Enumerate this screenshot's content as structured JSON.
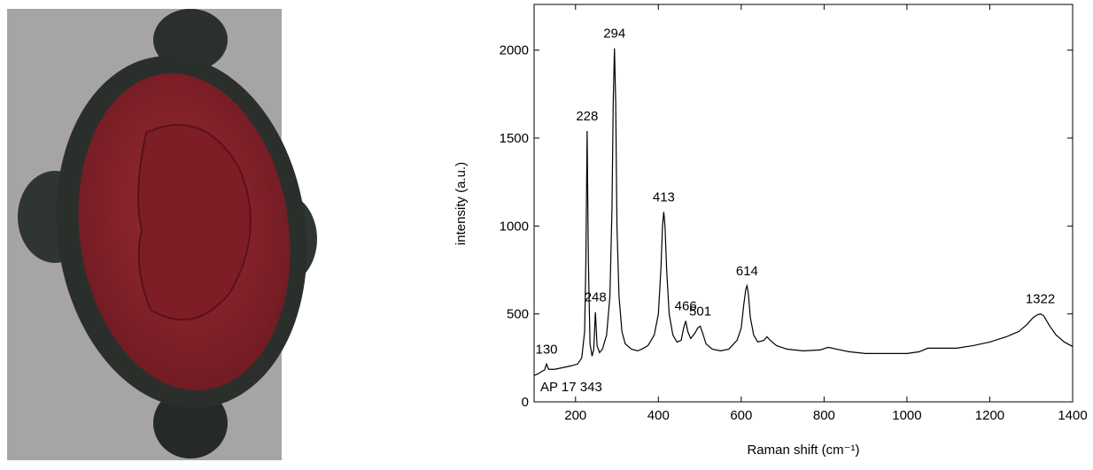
{
  "chart_data": {
    "type": "line",
    "xlabel": "Raman shift (cm⁻¹)",
    "ylabel": "intensity (a.u.)",
    "sample_label": "AP 17 343",
    "xlim": [
      100,
      1400
    ],
    "xticks": [
      200,
      400,
      600,
      800,
      1000,
      1200,
      1400
    ],
    "ylim": [
      0,
      2260
    ],
    "yticks": [
      0,
      500,
      1000,
      1500,
      2000
    ],
    "color": "#000000",
    "x": [
      100,
      110,
      120,
      125,
      130,
      135,
      150,
      170,
      190,
      205,
      215,
      222,
      225,
      228,
      231,
      235,
      240,
      244,
      248,
      252,
      258,
      265,
      275,
      283,
      288,
      291,
      294,
      297,
      300,
      305,
      312,
      320,
      335,
      350,
      360,
      375,
      390,
      400,
      406,
      410,
      413,
      416,
      420,
      426,
      435,
      445,
      455,
      461,
      466,
      471,
      478,
      488,
      495,
      501,
      507,
      515,
      530,
      550,
      570,
      590,
      600,
      606,
      611,
      614,
      617,
      622,
      630,
      640,
      655,
      662,
      670,
      685,
      710,
      750,
      790,
      810,
      830,
      860,
      900,
      950,
      1000,
      1030,
      1050,
      1080,
      1120,
      1160,
      1200,
      1240,
      1270,
      1290,
      1305,
      1315,
      1322,
      1330,
      1345,
      1360,
      1380,
      1400
    ],
    "values": [
      150,
      160,
      175,
      180,
      215,
      185,
      185,
      195,
      205,
      215,
      250,
      400,
      800,
      1540,
      800,
      330,
      260,
      300,
      510,
      320,
      280,
      300,
      380,
      600,
      1100,
      1700,
      2010,
      1700,
      1000,
      600,
      400,
      330,
      300,
      290,
      300,
      320,
      380,
      500,
      750,
      1000,
      1080,
      1000,
      750,
      500,
      380,
      340,
      350,
      420,
      460,
      400,
      360,
      390,
      420,
      430,
      390,
      330,
      300,
      290,
      300,
      350,
      420,
      550,
      640,
      660,
      620,
      480,
      380,
      340,
      350,
      370,
      350,
      320,
      300,
      290,
      295,
      310,
      300,
      285,
      275,
      275,
      275,
      285,
      305,
      305,
      305,
      320,
      340,
      370,
      400,
      440,
      480,
      495,
      500,
      490,
      430,
      380,
      340,
      315
    ],
    "annotations": [
      {
        "text": "130",
        "x": 130
      },
      {
        "text": "228",
        "x": 228
      },
      {
        "text": "248",
        "x": 248
      },
      {
        "text": "294",
        "x": 294
      },
      {
        "text": "413",
        "x": 413
      },
      {
        "text": "466",
        "x": 466
      },
      {
        "text": "501",
        "x": 501
      },
      {
        "text": "614",
        "x": 614
      },
      {
        "text": "1322",
        "x": 1322
      }
    ]
  }
}
